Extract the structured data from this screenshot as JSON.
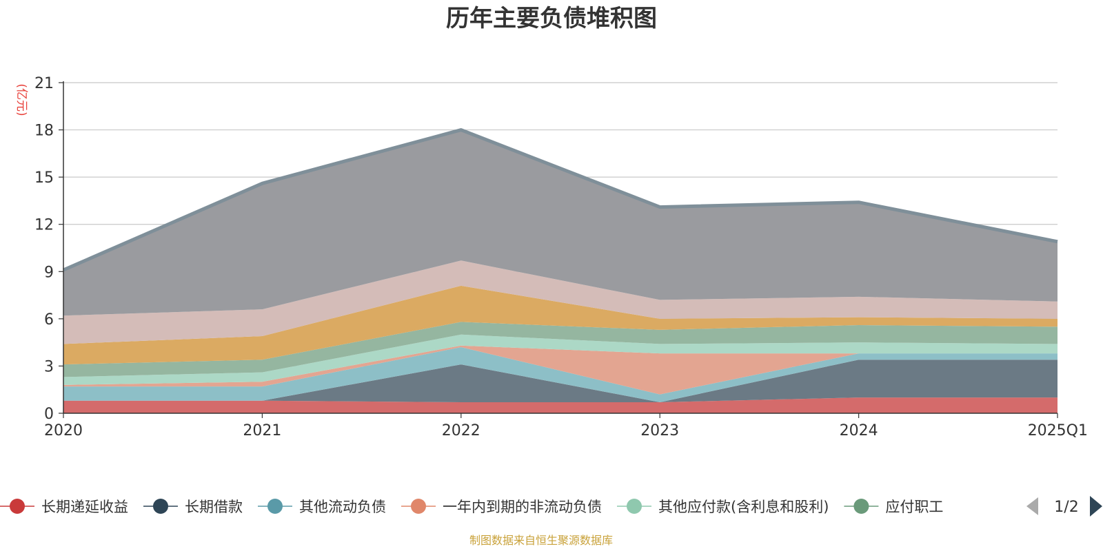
{
  "chart_data": {
    "type": "area",
    "title": "历年主要负债堆积图",
    "unit_label": "(亿元)",
    "categories": [
      "2020",
      "2021",
      "2022",
      "2023",
      "2024",
      "2025Q1"
    ],
    "ylim": [
      0,
      21
    ],
    "yticks": [
      "0",
      "3",
      "6",
      "9",
      "12",
      "15",
      "18",
      "21"
    ],
    "grid": true,
    "stacked": true,
    "series": [
      {
        "name": "长期递延收益",
        "color": "#d46b6b",
        "values": [
          0.8,
          0.8,
          0.7,
          0.7,
          1.0,
          1.0
        ]
      },
      {
        "name": "长期借款",
        "color": "#6b7a85",
        "values": [
          0,
          0,
          2.4,
          0,
          2.4,
          2.4
        ]
      },
      {
        "name": "其他流动负债",
        "color": "#8dbfc7",
        "values": [
          0.9,
          0.9,
          1.1,
          0.5,
          0.4,
          0.4
        ]
      },
      {
        "name": "一年内到期的非流动负债",
        "color": "#e3a591",
        "values": [
          0.1,
          0.3,
          0.1,
          2.6,
          0,
          0
        ]
      },
      {
        "name": "其他应付款(含利息和股利)",
        "color": "#acd8c6",
        "values": [
          0.5,
          0.6,
          0.7,
          0.6,
          0.7,
          0.6
        ]
      },
      {
        "name": "应付职工",
        "color": "#95b6a0",
        "values": [
          0.8,
          0.8,
          0.8,
          0.9,
          1.1,
          1.1
        ]
      },
      {
        "name": "",
        "color": "#dbaa62",
        "values": [
          1.3,
          1.5,
          2.3,
          0.7,
          0.5,
          0.5
        ]
      },
      {
        "name": "",
        "color": "#d4bcb8",
        "values": [
          1.8,
          1.7,
          1.6,
          1.2,
          1.3,
          1.1
        ]
      },
      {
        "name": "",
        "color": "#9a9b9f",
        "values": [
          2.9,
          8.0,
          8.3,
          5.9,
          6.0,
          3.8
        ]
      }
    ],
    "top_line_color": "#7f8f99",
    "legend_position": "bottom",
    "legend_page": "1/2"
  },
  "source_note": "制图数据来自恒生聚源数据库",
  "colors": {
    "grid": "#c8c8c8",
    "axis": "#333333",
    "legend_line": [
      "#c93a3a",
      "#2e4556",
      "#5a9aa8",
      "#e0876a",
      "#8fc8ae",
      "#6a9a7a"
    ]
  }
}
